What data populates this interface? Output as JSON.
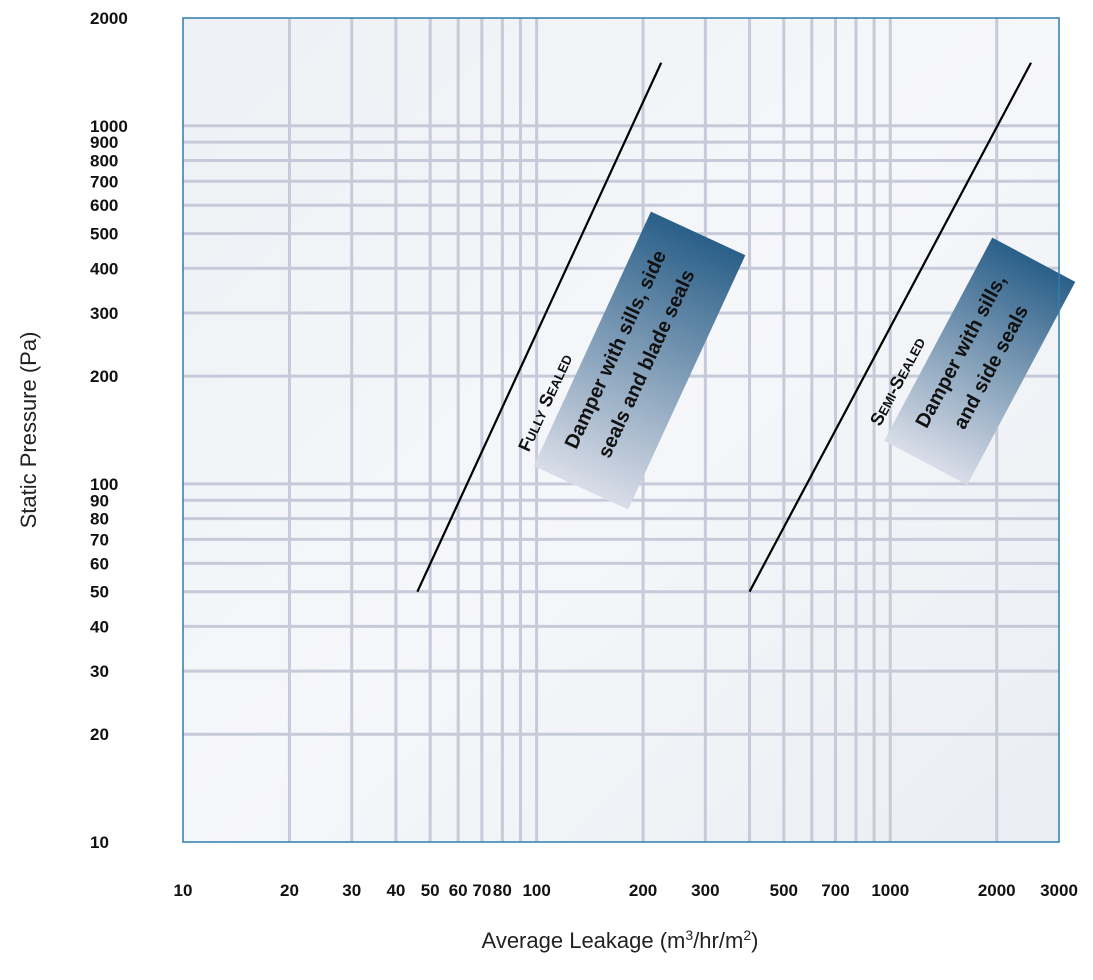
{
  "chart_data": {
    "type": "line",
    "x_scale": "log",
    "y_scale": "log",
    "xlim": [
      10,
      3000
    ],
    "ylim": [
      10,
      2000
    ],
    "x_major_ticks": [
      10,
      20,
      30,
      40,
      50,
      60,
      70,
      80,
      100,
      200,
      300,
      500,
      700,
      1000,
      2000,
      3000
    ],
    "y_major_ticks": [
      10,
      20,
      30,
      40,
      50,
      60,
      70,
      80,
      90,
      100,
      200,
      300,
      400,
      500,
      600,
      700,
      800,
      900,
      1000,
      2000
    ],
    "x_grid": [
      20,
      30,
      40,
      50,
      60,
      70,
      80,
      90,
      100,
      200,
      300,
      400,
      500,
      600,
      700,
      800,
      900,
      1000,
      2000
    ],
    "y_grid": [
      20,
      30,
      40,
      50,
      60,
      70,
      80,
      90,
      100,
      200,
      300,
      400,
      500,
      600,
      700,
      800,
      900,
      1000
    ],
    "grid": true,
    "xlabel": {
      "prefix": "Average Leakage (m",
      "sup1": "3",
      "middle": "/hr/m",
      "sup2": "2",
      "suffix": ")"
    },
    "ylabel": "Static Pressure (Pa)",
    "series": [
      {
        "name": "Fully Sealed",
        "points": [
          [
            46,
            50
          ],
          [
            225,
            1500
          ]
        ],
        "label_title": "Fully Sealed",
        "label_lines": [
          "Damper with sills, side",
          "seals and blade seals"
        ]
      },
      {
        "name": "Semi-Sealed",
        "points": [
          [
            400,
            50
          ],
          [
            2500,
            1500
          ]
        ],
        "label_title": "Semi-Sealed",
        "label_lines": [
          "Damper with sills,",
          "and side seals"
        ]
      }
    ],
    "colors": {
      "plot_border": "#2e7dae",
      "grid": "#c6cad9",
      "line": "#000000",
      "band_start": "#d9dde8",
      "band_end": "#2a5f88"
    }
  }
}
